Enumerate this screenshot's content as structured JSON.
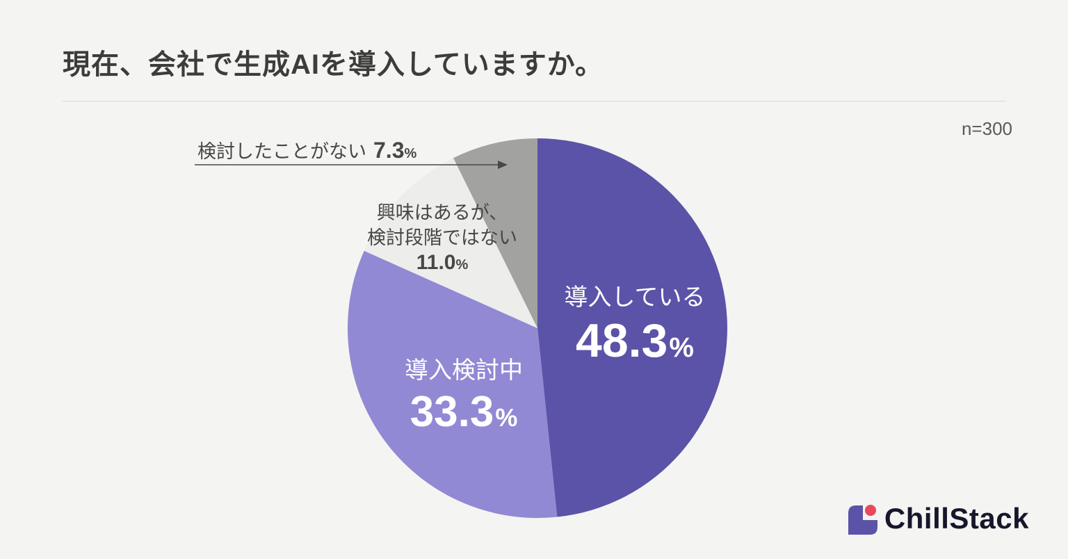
{
  "header": {
    "title": "現在、会社で生成AIを導入していますか。",
    "sample_label": "n=300"
  },
  "chart_data": {
    "type": "pie",
    "title": "現在、会社で生成AIを導入していますか。",
    "sample_size_label": "n=300",
    "start_angle": "top",
    "direction": "clockwise",
    "slices": [
      {
        "label": "導入している",
        "value": 48.3,
        "display_value": "48.3",
        "unit": "%",
        "color": "#5b53a7",
        "label_color": "#ffffff",
        "label_position": "inside"
      },
      {
        "label": "導入検討中",
        "value": 33.3,
        "display_value": "33.3",
        "unit": "%",
        "color": "#9189d3",
        "label_color": "#ffffff",
        "label_position": "inside"
      },
      {
        "label": "興味はあるが、検討段階ではない",
        "label_line1": "興味はあるが、",
        "label_line2": "検討段階ではない",
        "value": 11.0,
        "display_value": "11.0",
        "unit": "%",
        "color": "#ededec",
        "label_color": "#474747",
        "label_position": "outside"
      },
      {
        "label": "検討したことがない",
        "value": 7.3,
        "display_value": "7.3",
        "unit": "%",
        "color": "#a2a2a0",
        "label_color": "#474747",
        "label_position": "outside-callout"
      }
    ]
  },
  "footer": {
    "brand": "ChillStack"
  },
  "colors": {
    "background": "#f4f4f2",
    "title_text": "#3c3c3c",
    "divider": "#d8d8d6",
    "brand_purple": "#5b53a7",
    "brand_red": "#e8485c"
  }
}
